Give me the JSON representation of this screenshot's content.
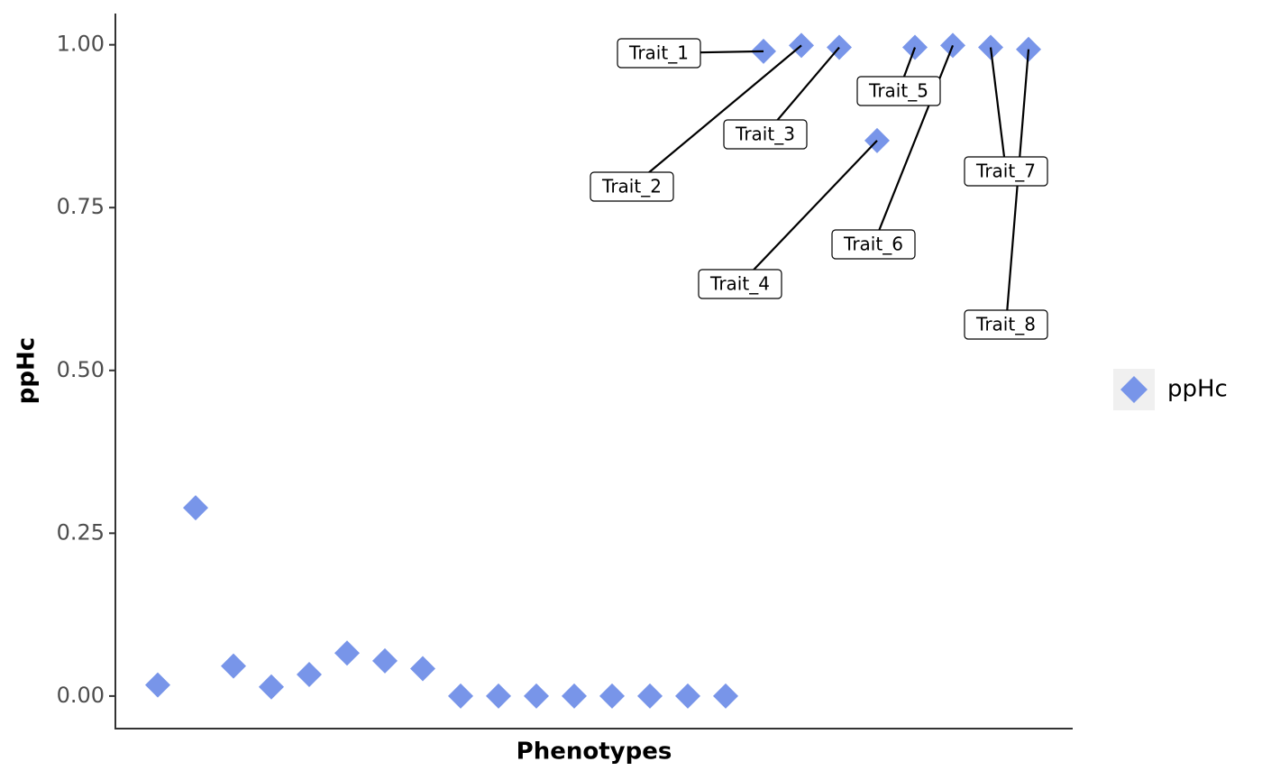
{
  "chart_data": {
    "type": "scatter",
    "x_label": "Phenotypes",
    "y_label": "ppHc",
    "categories": [
      null,
      null,
      null,
      null,
      null,
      null,
      null,
      null,
      null,
      null,
      null,
      null,
      null,
      null,
      null,
      null,
      null,
      null,
      null,
      null,
      null,
      null,
      null,
      null
    ],
    "series": [
      {
        "name": "ppHc",
        "color": "#7895e9",
        "values": [
          0.017,
          0.289,
          0.046,
          0.014,
          0.033,
          0.066,
          0.054,
          0.042,
          0,
          0,
          0,
          0,
          0,
          0,
          0,
          0,
          0.99,
          0.999,
          0.996,
          0.853,
          0.996,
          0.999,
          0.996,
          0.993
        ],
        "labels": [
          null,
          null,
          null,
          null,
          null,
          null,
          null,
          null,
          null,
          null,
          null,
          null,
          null,
          null,
          null,
          null,
          "Trait_1",
          "Trait_2",
          "Trait_3",
          "Trait_4",
          "Trait_5",
          "Trait_6",
          "Trait_7",
          "Trait_8"
        ]
      }
    ],
    "ylim": [
      -0.05,
      1.048
    ],
    "yticks": [
      {
        "value": 0,
        "label": "0.00"
      },
      {
        "value": 0.25,
        "label": "0.25"
      },
      {
        "value": 0.5,
        "label": "0.50"
      },
      {
        "value": 0.75,
        "label": "0.75"
      },
      {
        "value": 1,
        "label": "1.00"
      }
    ],
    "grid": false,
    "legend": "right"
  }
}
